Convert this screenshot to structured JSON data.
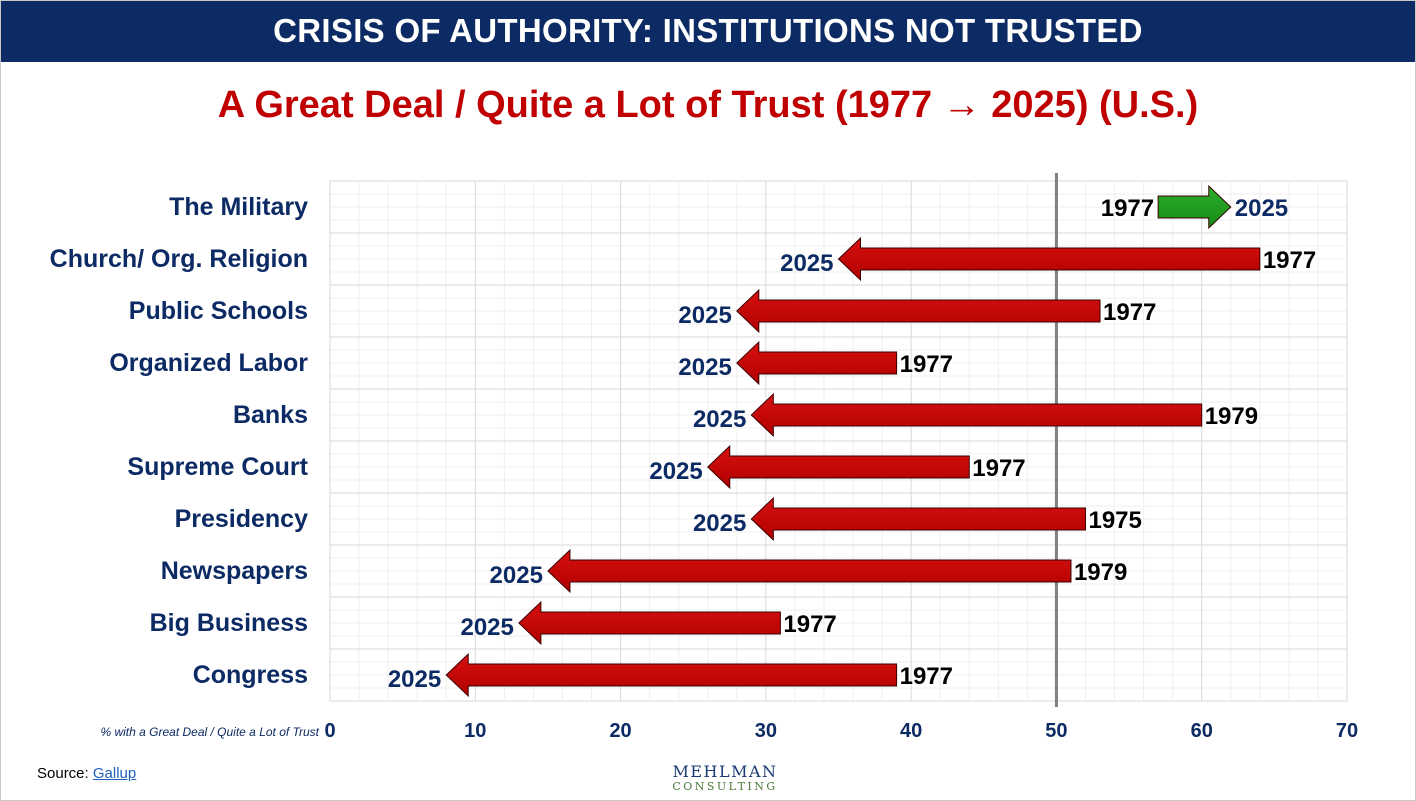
{
  "banner": {
    "title": "CRISIS OF AUTHORITY: INSTITUTIONS NOT TRUSTED"
  },
  "subtitle": "A Great Deal / Quite a Lot of Trust (1977 → 2025) (U.S.)",
  "colors": {
    "banner_bg": "#0c2a63",
    "decline": "#c00000",
    "increase": "#1a9a1a",
    "label_navy": "#0c2a63",
    "reference_line": "#808080"
  },
  "chart_data": {
    "type": "arrow",
    "title": "A Great Deal / Quite a Lot of Trust (1977 → 2025) (U.S.)",
    "xlabel": "% with a Great Deal / Quite a Lot of Trust",
    "ylabel": "",
    "xlim": [
      0,
      70
    ],
    "x_ticks": [
      "0",
      "10",
      "20",
      "30",
      "40",
      "50",
      "60",
      "70"
    ],
    "reference_line": 50,
    "grid": true,
    "categories": [
      "The Military",
      "Church/ Org. Religion",
      "Public Schools",
      "Organized Labor",
      "Banks",
      "Supreme Court",
      "Presidency",
      "Newspapers",
      "Big Business",
      "Congress"
    ],
    "series": [
      {
        "name": "start",
        "years": [
          "1977",
          "1977",
          "1977",
          "1977",
          "1979",
          "1977",
          "1975",
          "1979",
          "1977",
          "1977"
        ],
        "values": [
          57,
          64,
          53,
          39,
          60,
          44,
          52,
          51,
          31,
          39
        ]
      },
      {
        "name": "2025",
        "years": [
          "2025",
          "2025",
          "2025",
          "2025",
          "2025",
          "2025",
          "2025",
          "2025",
          "2025",
          "2025"
        ],
        "values": [
          62,
          35,
          28,
          28,
          29,
          26,
          29,
          15,
          13,
          8
        ]
      }
    ]
  },
  "source": {
    "label": "Source:",
    "link_text": "Gallup"
  },
  "logo": {
    "name": "MEHLMAN",
    "sub": "CONSULTING"
  }
}
